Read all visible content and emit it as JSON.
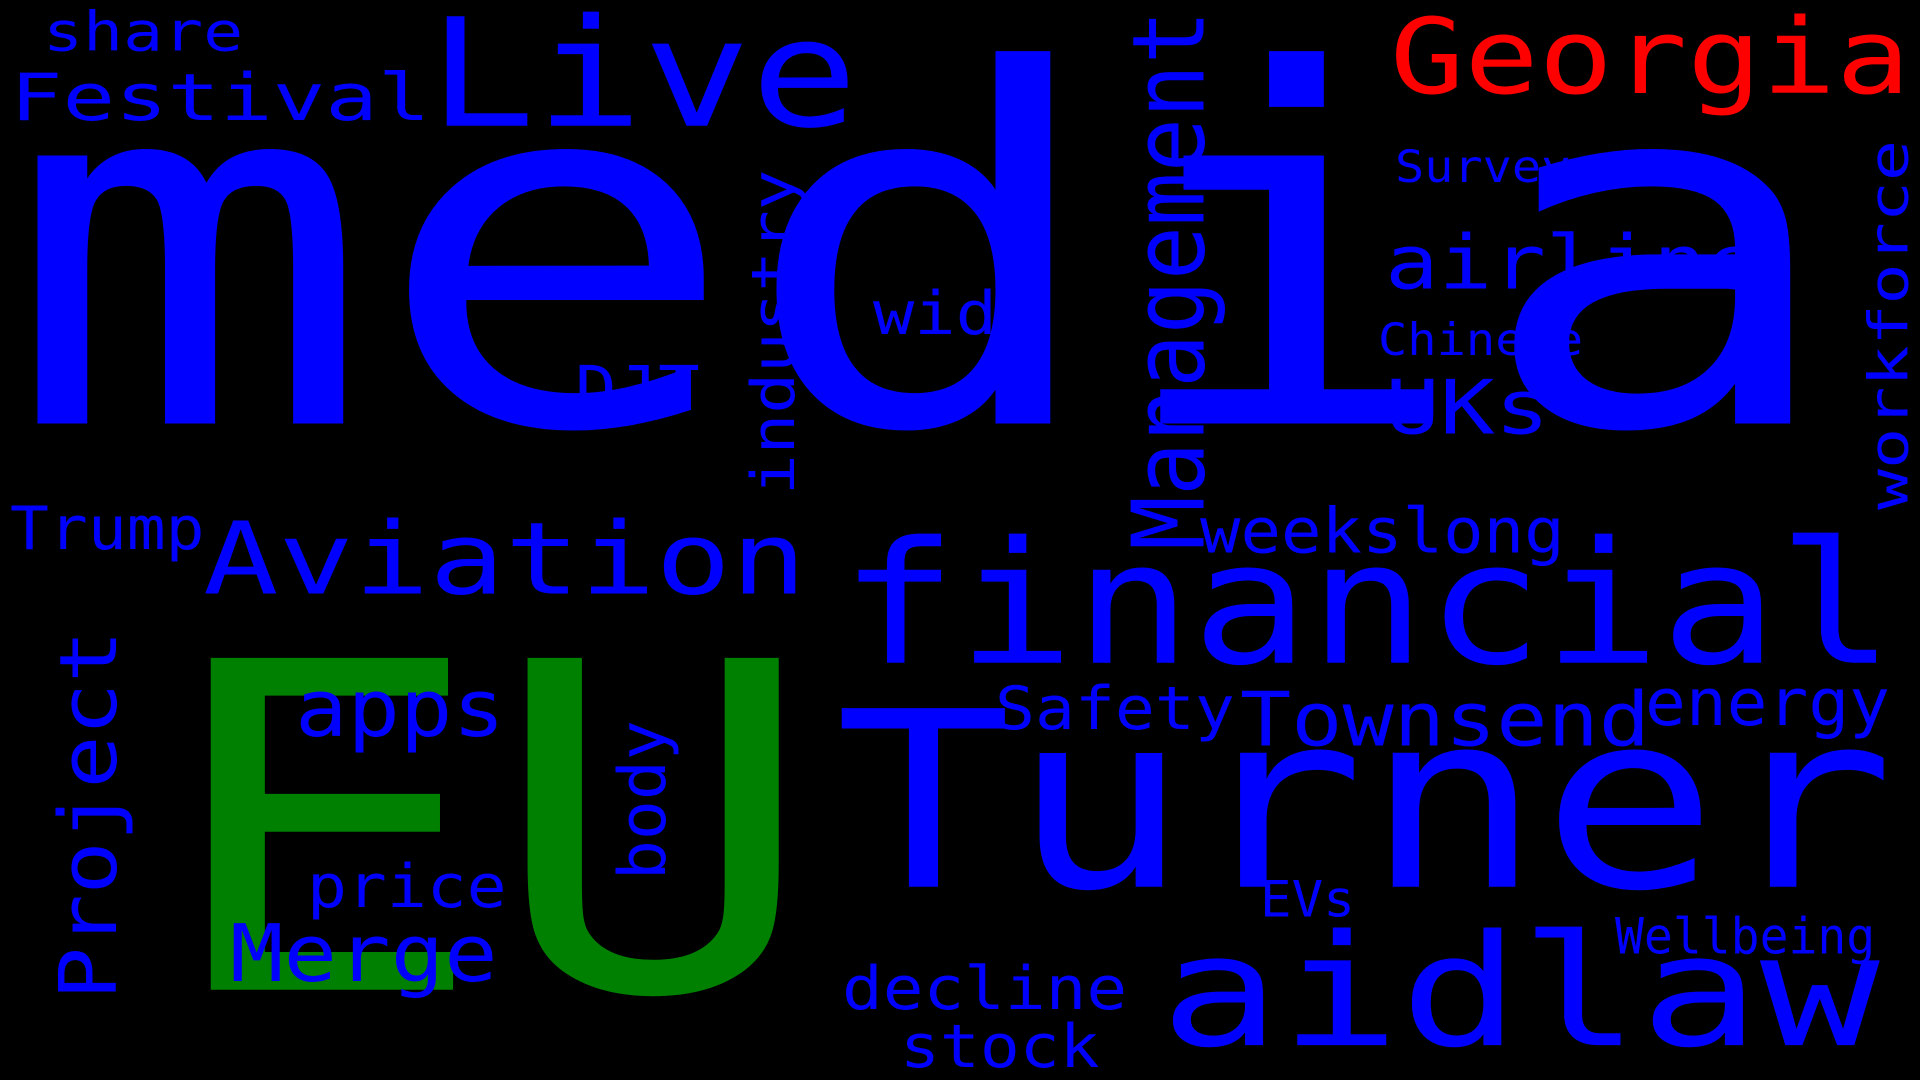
{
  "colors": {
    "background": "#000000",
    "blue": "#0000ff",
    "green": "#008000",
    "red": "#ff0000"
  },
  "words": [
    {
      "key": "media",
      "text": "media",
      "color": "blue"
    },
    {
      "key": "eu",
      "text": "EU",
      "color": "green"
    },
    {
      "key": "turner",
      "text": "Turner",
      "color": "blue"
    },
    {
      "key": "financial",
      "text": "financial",
      "color": "blue"
    },
    {
      "key": "aidlaw",
      "text": "aidlaw",
      "color": "blue"
    },
    {
      "key": "live",
      "text": "Live",
      "color": "blue"
    },
    {
      "key": "georgia",
      "text": "Georgia",
      "color": "red"
    },
    {
      "key": "aviation",
      "text": "Aviation",
      "color": "blue"
    },
    {
      "key": "festival",
      "text": "Festival",
      "color": "blue"
    },
    {
      "key": "share",
      "text": "share",
      "color": "blue"
    },
    {
      "key": "management",
      "text": "Management",
      "color": "blue"
    },
    {
      "key": "industry",
      "text": "industry",
      "color": "blue"
    },
    {
      "key": "workforce",
      "text": "workforce",
      "color": "blue"
    },
    {
      "key": "survey",
      "text": "Survey",
      "color": "blue"
    },
    {
      "key": "airline",
      "text": "airline",
      "color": "blue"
    },
    {
      "key": "wide",
      "text": "wide",
      "color": "blue"
    },
    {
      "key": "chinese",
      "text": "Chinese",
      "color": "blue"
    },
    {
      "key": "djt",
      "text": "DJT",
      "color": "blue"
    },
    {
      "key": "uks",
      "text": "UKs",
      "color": "blue"
    },
    {
      "key": "trump",
      "text": "Trump",
      "color": "blue"
    },
    {
      "key": "weekslong",
      "text": "weekslong",
      "color": "blue"
    },
    {
      "key": "project",
      "text": "Project",
      "color": "blue"
    },
    {
      "key": "apps",
      "text": "apps",
      "color": "blue"
    },
    {
      "key": "safety",
      "text": "Safety",
      "color": "blue"
    },
    {
      "key": "townsend",
      "text": "Townsend",
      "color": "blue"
    },
    {
      "key": "energy",
      "text": "energy",
      "color": "blue"
    },
    {
      "key": "body",
      "text": "body",
      "color": "blue"
    },
    {
      "key": "price",
      "text": "price",
      "color": "blue"
    },
    {
      "key": "merge",
      "text": "Merge",
      "color": "blue"
    },
    {
      "key": "evs",
      "text": "EVs",
      "color": "blue"
    },
    {
      "key": "wellbeing",
      "text": "Wellbeing",
      "color": "blue"
    },
    {
      "key": "decline",
      "text": "decline",
      "color": "blue"
    },
    {
      "key": "stock",
      "text": "stock",
      "color": "blue"
    }
  ]
}
